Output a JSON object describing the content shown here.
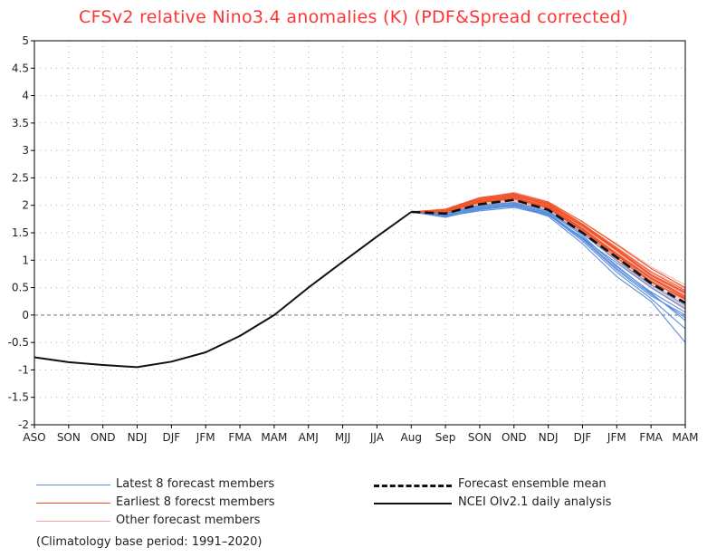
{
  "colors": {
    "title": "#ff3333",
    "observed": "#111111",
    "ensemble_mean": "#111111",
    "latest": "#5b8fdc",
    "earliest": "#f0552b",
    "other": "#f2a8a0",
    "grid": "#b0b0b0",
    "zero_line": "#888888"
  },
  "chart_data": {
    "type": "line",
    "title": "CFSv2 relative Nino3.4 anomalies (K) (PDF&Spread corrected)",
    "xlabel": "",
    "ylabel": "",
    "ylim": [
      -2,
      5
    ],
    "yticks": [
      5,
      4.5,
      4,
      3.5,
      3,
      2.5,
      2,
      1.5,
      1,
      0.5,
      0,
      -0.5,
      -1,
      -1.5,
      -2
    ],
    "ytick_labels": [
      "5",
      "4.5",
      "4",
      "3.5",
      "3",
      "2.5",
      "2",
      "1.5",
      "1",
      "0.5",
      "0",
      "-0.5",
      "-1",
      "-1.5",
      "-2"
    ],
    "categories": [
      "ASO",
      "SON",
      "OND",
      "NDJ",
      "DJF",
      "JFM",
      "FMA",
      "MAM",
      "AMJ",
      "MJJ",
      "JJA",
      "Aug",
      "Sep",
      "SON",
      "OND",
      "NDJ",
      "DJF",
      "JFM",
      "FMA",
      "MAM"
    ],
    "grid": true,
    "legend_position": "bottom",
    "series": [
      {
        "name": "NCEI OIv2.1 daily analysis",
        "values": [
          -0.77,
          -0.86,
          -0.91,
          -0.95,
          -0.85,
          -0.68,
          -0.38,
          0.0,
          0.5,
          0.97,
          1.43,
          1.88,
          null,
          null,
          null,
          null,
          null,
          null,
          null,
          null
        ]
      },
      {
        "name": "Forecast ensemble mean",
        "values": [
          null,
          null,
          null,
          null,
          null,
          null,
          null,
          null,
          null,
          null,
          null,
          1.88,
          1.85,
          2.02,
          2.1,
          1.92,
          1.5,
          1.05,
          0.58,
          0.22
        ]
      },
      {
        "name": "Latest 8 forecast members",
        "members": [
          [
            1.88,
            1.78,
            1.93,
            2.0,
            1.8,
            1.3,
            0.7,
            0.25,
            -0.5
          ],
          [
            1.88,
            1.82,
            1.95,
            1.98,
            1.84,
            1.38,
            0.82,
            0.35,
            0.0
          ],
          [
            1.88,
            1.8,
            1.9,
            1.96,
            1.82,
            1.42,
            0.9,
            0.4,
            -0.1
          ],
          [
            1.88,
            1.85,
            1.98,
            2.04,
            1.86,
            1.4,
            0.95,
            0.5,
            0.12
          ],
          [
            1.88,
            1.83,
            1.96,
            2.02,
            1.88,
            1.45,
            0.88,
            0.42,
            0.05
          ],
          [
            1.88,
            1.79,
            1.92,
            1.99,
            1.83,
            1.35,
            0.78,
            0.3,
            -0.25
          ],
          [
            1.88,
            1.86,
            2.0,
            2.05,
            1.9,
            1.48,
            1.0,
            0.55,
            0.18
          ],
          [
            1.88,
            1.81,
            1.94,
            2.01,
            1.85,
            1.4,
            0.85,
            0.38,
            -0.05
          ]
        ]
      },
      {
        "name": "Earliest 8 forecast members",
        "members": [
          [
            1.88,
            1.9,
            2.1,
            2.18,
            2.0,
            1.62,
            1.18,
            0.72,
            0.4
          ],
          [
            1.88,
            1.87,
            2.06,
            2.15,
            1.98,
            1.58,
            1.12,
            0.68,
            0.35
          ],
          [
            1.88,
            1.92,
            2.12,
            2.2,
            2.04,
            1.66,
            1.22,
            0.78,
            0.45
          ],
          [
            1.88,
            1.89,
            2.08,
            2.16,
            1.96,
            1.55,
            1.08,
            0.62,
            0.28
          ],
          [
            1.88,
            1.9,
            2.05,
            2.12,
            1.95,
            1.52,
            1.04,
            0.6,
            0.3
          ],
          [
            1.88,
            1.93,
            2.14,
            2.22,
            2.06,
            1.7,
            1.28,
            0.85,
            0.5
          ],
          [
            1.88,
            1.88,
            2.07,
            2.14,
            1.97,
            1.57,
            1.1,
            0.66,
            0.32
          ],
          [
            1.88,
            1.91,
            2.1,
            2.19,
            2.02,
            1.64,
            1.2,
            0.74,
            0.42
          ]
        ]
      },
      {
        "name": "Other forecast members",
        "members": [
          [
            1.88,
            1.86,
            2.04,
            2.12,
            1.94,
            1.55,
            1.1,
            0.65,
            0.3
          ],
          [
            1.88,
            1.9,
            2.09,
            2.17,
            2.0,
            1.62,
            1.15,
            0.7,
            0.38
          ],
          [
            1.88,
            1.84,
            2.0,
            2.08,
            1.92,
            1.52,
            1.05,
            0.58,
            0.22
          ],
          [
            1.88,
            1.92,
            2.12,
            2.24,
            2.07,
            1.7,
            1.3,
            0.88,
            0.55
          ],
          [
            1.88,
            1.85,
            2.02,
            2.1,
            1.93,
            1.5,
            1.0,
            0.52,
            0.15
          ],
          [
            1.88,
            1.89,
            2.07,
            2.14,
            1.98,
            1.6,
            1.16,
            0.72,
            0.4
          ],
          [
            1.88,
            1.87,
            2.05,
            2.11,
            1.95,
            1.54,
            1.08,
            0.62,
            0.25
          ],
          [
            1.88,
            1.91,
            2.11,
            2.2,
            2.03,
            1.66,
            1.24,
            0.8,
            0.48
          ],
          [
            1.88,
            1.83,
            1.99,
            2.06,
            1.9,
            1.48,
            0.98,
            0.5,
            0.1
          ],
          [
            1.88,
            1.88,
            2.06,
            2.13,
            1.97,
            1.58,
            1.12,
            0.68,
            0.34
          ]
        ]
      }
    ]
  },
  "legend": {
    "latest": "Latest 8 forecast members",
    "earliest": "Earliest 8 forecst members",
    "other": "Other forecast members",
    "mean": "Forecast ensemble mean",
    "observed": "NCEI OIv2.1 daily analysis"
  },
  "footnote": "(Climatology base period: 1991–2020)"
}
